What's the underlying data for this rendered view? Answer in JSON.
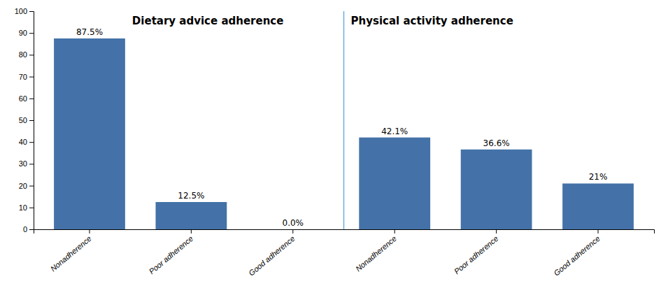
{
  "chart_data": {
    "type": "bar",
    "categories": [
      "Nonadherence",
      "Poor adherence",
      "Good adherence",
      "Nonadherence",
      "Poor adherence",
      "Good adherence"
    ],
    "values": [
      87.5,
      12.5,
      0.0,
      42.1,
      36.6,
      21.0
    ],
    "value_labels": [
      "87.5%",
      "12.5%",
      "0.0%",
      "42.1%",
      "36.6%",
      "21%"
    ],
    "data_labels": true,
    "color": "#4472a8",
    "ylim": [
      0,
      100
    ],
    "yticks": [
      0,
      10,
      20,
      30,
      40,
      50,
      60,
      70,
      80,
      90,
      100
    ],
    "grid": false,
    "annotations": [
      "Dietary advice adherence",
      "Physical activity adherence"
    ]
  }
}
